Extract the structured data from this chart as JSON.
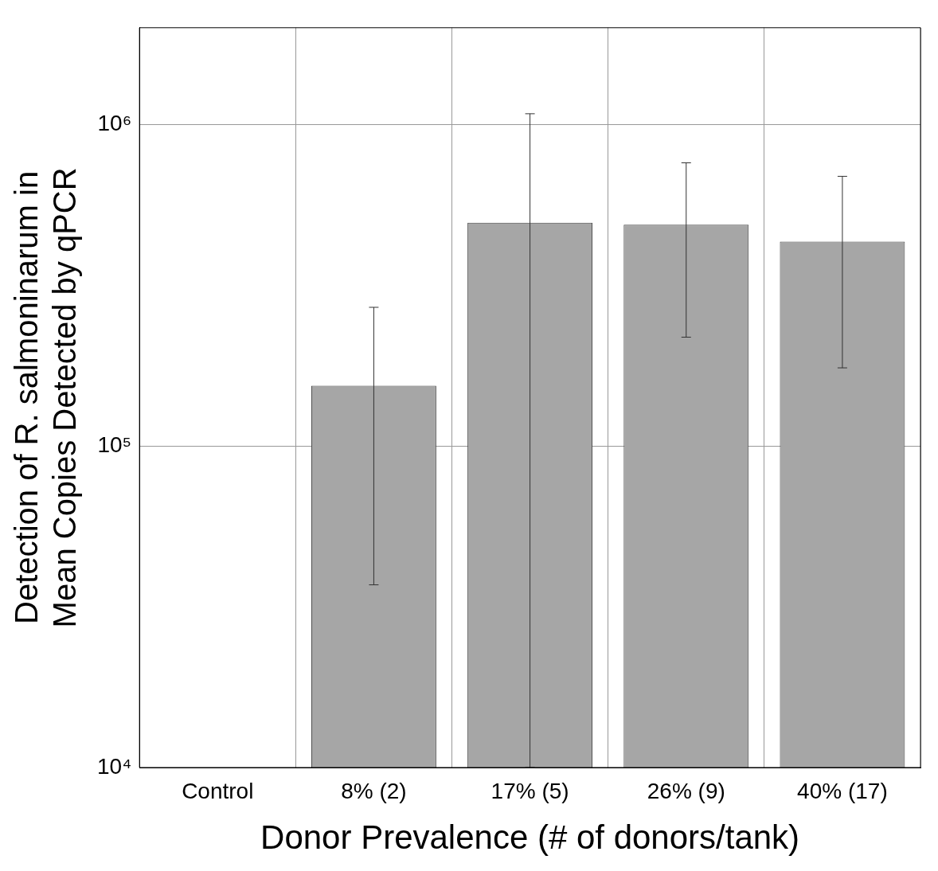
{
  "chart_data": {
    "type": "bar",
    "xlabel": "Donor Prevalence (# of donors/tank)",
    "ylabel": "Detection of R. salmoninarum in\nMean Copies Detected by qPCR",
    "categories": [
      "Control",
      "8% (2)",
      "17% (5)",
      "26% (9)",
      "40% (17)"
    ],
    "values": [
      null,
      154000,
      495000,
      488000,
      432000
    ],
    "errors": [
      null,
      [
        37000,
        270000
      ],
      [
        10000,
        1080000
      ],
      [
        218000,
        760000
      ],
      [
        175000,
        690000
      ]
    ],
    "color": "#a6a6a6",
    "log": true,
    "ylim": [
      10000,
      2000000
    ],
    "yticks": [
      {
        "value": 10000,
        "label": "10⁴"
      },
      {
        "value": 100000,
        "label": "10⁵"
      },
      {
        "value": 1000000,
        "label": "10⁶"
      }
    ],
    "grid": true,
    "legend": false
  }
}
